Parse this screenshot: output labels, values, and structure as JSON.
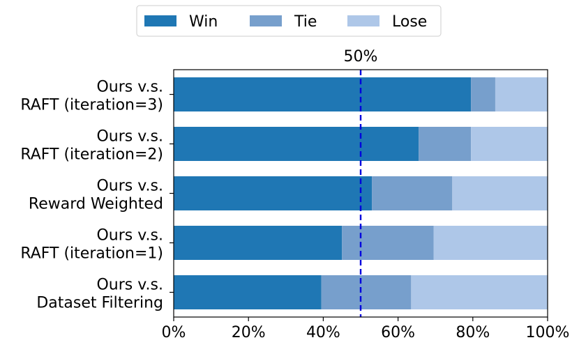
{
  "chart_data": {
    "type": "bar",
    "orientation": "horizontal",
    "stacked": true,
    "categories": [
      [
        "Ours v.s.",
        "RAFT (iteration=3)"
      ],
      [
        "Ours v.s.",
        "RAFT (iteration=2)"
      ],
      [
        "Ours v.s.",
        "Reward Weighted"
      ],
      [
        "Ours v.s.",
        "RAFT (iteration=1)"
      ],
      [
        "Ours v.s.",
        "Dataset Filtering"
      ]
    ],
    "series": [
      {
        "name": "Win",
        "color": "#1f77b4",
        "values": [
          79.5,
          65.5,
          53.0,
          45.0,
          39.5
        ]
      },
      {
        "name": "Tie",
        "color": "#779fcc",
        "values": [
          6.5,
          14.0,
          21.5,
          24.5,
          24.0
        ]
      },
      {
        "name": "Lose",
        "color": "#aec7e8",
        "values": [
          14.0,
          20.5,
          25.5,
          30.5,
          36.5
        ]
      }
    ],
    "xlim": [
      0,
      100
    ],
    "xticks": [
      "0%",
      "20%",
      "40%",
      "60%",
      "80%",
      "100%"
    ],
    "xtick_values": [
      0,
      20,
      40,
      60,
      80,
      100
    ],
    "reference_line": {
      "value": 50,
      "label": "50%",
      "color": "#0000dd",
      "style": "dashed"
    },
    "legend": {
      "placement": "top-center",
      "entries": [
        "Win",
        "Tie",
        "Lose"
      ]
    },
    "grid": false,
    "title": "",
    "xlabel": "",
    "ylabel": ""
  }
}
